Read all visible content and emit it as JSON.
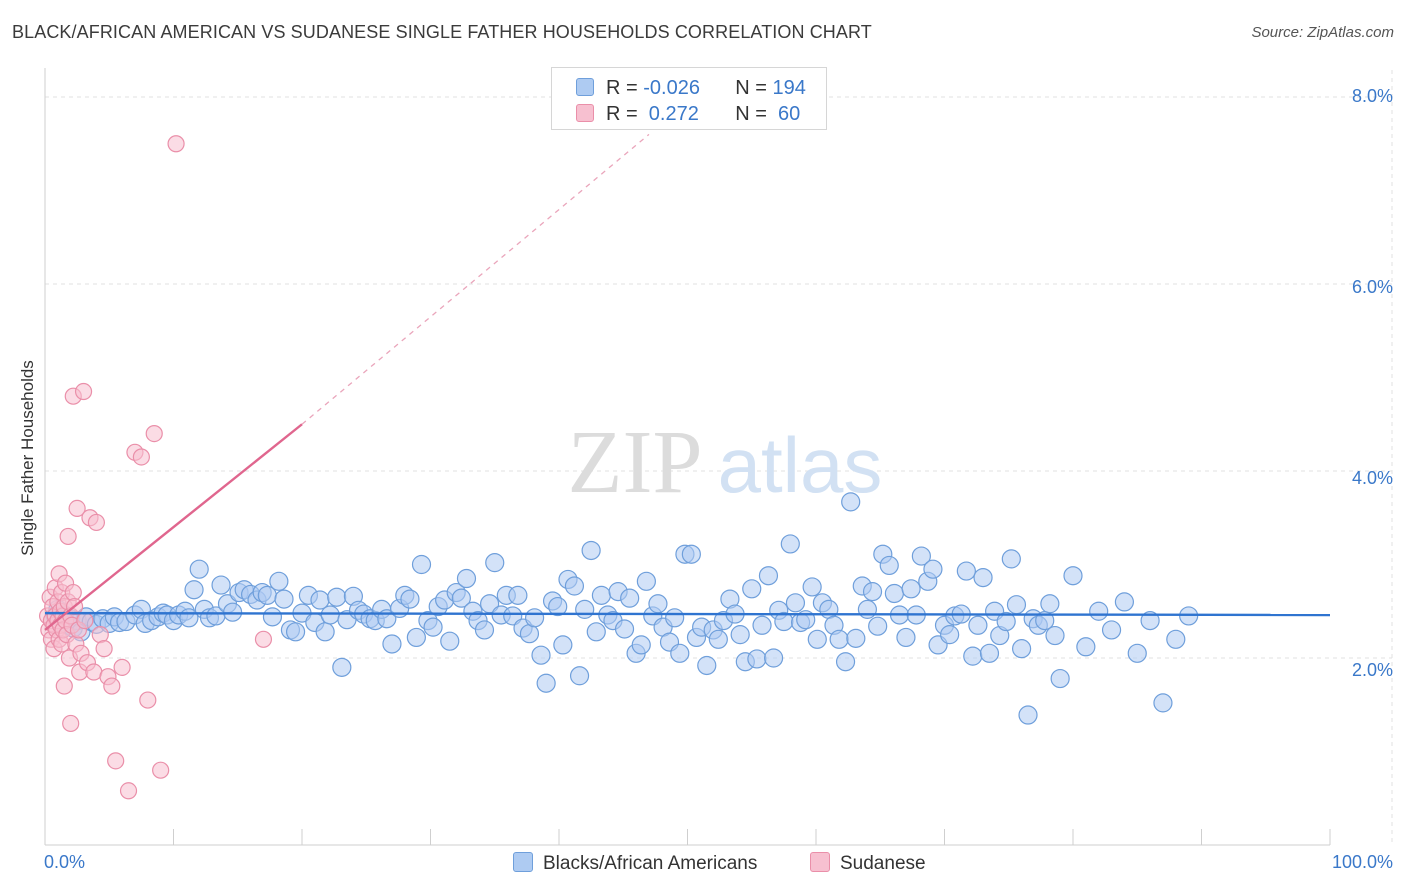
{
  "header": {
    "title": "BLACK/AFRICAN AMERICAN VS SUDANESE SINGLE FATHER HOUSEHOLDS CORRELATION CHART",
    "source": "Source: ZipAtlas.com"
  },
  "watermark": {
    "zip": "ZIP",
    "atlas": "atlas"
  },
  "legend_top": {
    "rows": [
      {
        "r_label": "R = ",
        "r_value": "-0.026",
        "n_label": "N = ",
        "n_value": "194"
      },
      {
        "r_label": "R = ",
        "r_value": " 0.272",
        "n_label": "N = ",
        "n_value": " 60"
      }
    ]
  },
  "legend_bottom": {
    "items": [
      {
        "label": "Blacks/African Americans"
      },
      {
        "label": "Sudanese"
      }
    ]
  },
  "colors": {
    "blue_fill": "#aecbf2",
    "blue_stroke": "#6f9fdb",
    "blue_line": "#2f74d0",
    "pink_fill": "#f7c0d0",
    "pink_stroke": "#ea8fa9",
    "pink_line": "#e0668e",
    "axis_text": "#3a78c9",
    "grid": "#e2e2e2"
  },
  "axes": {
    "ylabel": "Single Father Households",
    "x_tick_left": "0.0%",
    "x_tick_right": "100.0%",
    "y_ticks": [
      "2.0%",
      "4.0%",
      "6.0%",
      "8.0%"
    ]
  },
  "chart_data": {
    "type": "scatter",
    "xlim": [
      0,
      100
    ],
    "ylim": [
      0,
      8.0
    ],
    "grid": true,
    "legend_placement": "bottom",
    "series": [
      {
        "name": "Blacks/African Americans",
        "r": -0.026,
        "n": 194,
        "trend": {
          "x": [
            0,
            100
          ],
          "y": [
            2.48,
            2.46
          ]
        },
        "points": [
          [
            0.8,
            2.45
          ],
          [
            1.0,
            2.52
          ],
          [
            1.2,
            2.38
          ],
          [
            1.5,
            2.46
          ],
          [
            1.8,
            2.35
          ],
          [
            2.0,
            2.42
          ],
          [
            2.2,
            2.32
          ],
          [
            2.5,
            2.4
          ],
          [
            2.8,
            2.28
          ],
          [
            3.2,
            2.44
          ],
          [
            3.6,
            2.39
          ],
          [
            4.0,
            2.36
          ],
          [
            4.5,
            2.42
          ],
          [
            5.0,
            2.37
          ],
          [
            5.4,
            2.44
          ],
          [
            5.8,
            2.38
          ],
          [
            6.3,
            2.39
          ],
          [
            7.0,
            2.46
          ],
          [
            7.5,
            2.52
          ],
          [
            7.8,
            2.37
          ],
          [
            8.3,
            2.4
          ],
          [
            8.8,
            2.44
          ],
          [
            9.2,
            2.48
          ],
          [
            9.5,
            2.46
          ],
          [
            10.0,
            2.4
          ],
          [
            10.4,
            2.46
          ],
          [
            10.9,
            2.5
          ],
          [
            11.2,
            2.43
          ],
          [
            11.6,
            2.73
          ],
          [
            12.0,
            2.95
          ],
          [
            12.4,
            2.52
          ],
          [
            12.8,
            2.43
          ],
          [
            13.3,
            2.45
          ],
          [
            13.7,
            2.78
          ],
          [
            14.2,
            2.58
          ],
          [
            14.6,
            2.49
          ],
          [
            15.1,
            2.7
          ],
          [
            15.5,
            2.73
          ],
          [
            16.0,
            2.68
          ],
          [
            16.5,
            2.62
          ],
          [
            16.9,
            2.7
          ],
          [
            17.3,
            2.67
          ],
          [
            17.7,
            2.44
          ],
          [
            18.2,
            2.82
          ],
          [
            18.6,
            2.63
          ],
          [
            19.1,
            2.3
          ],
          [
            19.5,
            2.28
          ],
          [
            20.0,
            2.48
          ],
          [
            20.5,
            2.67
          ],
          [
            21.0,
            2.38
          ],
          [
            21.4,
            2.62
          ],
          [
            21.8,
            2.28
          ],
          [
            22.2,
            2.46
          ],
          [
            22.7,
            2.65
          ],
          [
            23.1,
            1.9
          ],
          [
            23.5,
            2.41
          ],
          [
            24.0,
            2.66
          ],
          [
            24.4,
            2.51
          ],
          [
            24.8,
            2.47
          ],
          [
            25.3,
            2.42
          ],
          [
            25.7,
            2.4
          ],
          [
            26.2,
            2.52
          ],
          [
            26.6,
            2.42
          ],
          [
            27.0,
            2.15
          ],
          [
            27.6,
            2.53
          ],
          [
            28.0,
            2.67
          ],
          [
            28.4,
            2.63
          ],
          [
            28.9,
            2.22
          ],
          [
            29.3,
            3.0
          ],
          [
            29.8,
            2.4
          ],
          [
            30.2,
            2.33
          ],
          [
            30.6,
            2.55
          ],
          [
            31.1,
            2.62
          ],
          [
            31.5,
            2.18
          ],
          [
            32.0,
            2.7
          ],
          [
            32.4,
            2.64
          ],
          [
            32.8,
            2.85
          ],
          [
            33.3,
            2.5
          ],
          [
            33.7,
            2.4
          ],
          [
            34.2,
            2.3
          ],
          [
            34.6,
            2.58
          ],
          [
            35.0,
            3.02
          ],
          [
            35.5,
            2.46
          ],
          [
            35.9,
            2.67
          ],
          [
            36.4,
            2.45
          ],
          [
            36.8,
            2.67
          ],
          [
            37.2,
            2.32
          ],
          [
            37.7,
            2.26
          ],
          [
            38.1,
            2.43
          ],
          [
            38.6,
            2.03
          ],
          [
            39.0,
            1.73
          ],
          [
            39.5,
            2.61
          ],
          [
            39.9,
            2.55
          ],
          [
            40.3,
            2.14
          ],
          [
            40.7,
            2.84
          ],
          [
            41.2,
            2.77
          ],
          [
            41.6,
            1.81
          ],
          [
            42.0,
            2.52
          ],
          [
            42.5,
            3.15
          ],
          [
            42.9,
            2.28
          ],
          [
            43.3,
            2.67
          ],
          [
            43.8,
            2.46
          ],
          [
            44.2,
            2.4
          ],
          [
            44.6,
            2.71
          ],
          [
            45.1,
            2.31
          ],
          [
            45.5,
            2.64
          ],
          [
            46.0,
            2.05
          ],
          [
            46.4,
            2.14
          ],
          [
            46.8,
            2.82
          ],
          [
            47.3,
            2.45
          ],
          [
            47.7,
            2.58
          ],
          [
            48.1,
            2.33
          ],
          [
            48.6,
            2.17
          ],
          [
            49.0,
            2.43
          ],
          [
            49.4,
            2.05
          ],
          [
            49.8,
            3.11
          ],
          [
            50.3,
            3.11
          ],
          [
            50.7,
            2.22
          ],
          [
            51.1,
            2.33
          ],
          [
            51.5,
            1.92
          ],
          [
            52.0,
            2.3
          ],
          [
            52.4,
            2.2
          ],
          [
            52.8,
            2.4
          ],
          [
            53.3,
            2.63
          ],
          [
            53.7,
            2.47
          ],
          [
            54.1,
            2.25
          ],
          [
            54.5,
            1.96
          ],
          [
            55.0,
            2.74
          ],
          [
            55.4,
            1.99
          ],
          [
            55.8,
            2.35
          ],
          [
            56.3,
            2.88
          ],
          [
            56.7,
            2.0
          ],
          [
            57.1,
            2.51
          ],
          [
            57.5,
            2.39
          ],
          [
            58.0,
            3.22
          ],
          [
            58.4,
            2.59
          ],
          [
            58.8,
            2.38
          ],
          [
            59.2,
            2.41
          ],
          [
            59.7,
            2.76
          ],
          [
            60.1,
            2.2
          ],
          [
            60.5,
            2.59
          ],
          [
            61.0,
            2.52
          ],
          [
            61.4,
            2.35
          ],
          [
            61.8,
            2.2
          ],
          [
            62.3,
            1.96
          ],
          [
            62.7,
            3.67
          ],
          [
            63.1,
            2.21
          ],
          [
            63.6,
            2.77
          ],
          [
            64.0,
            2.52
          ],
          [
            64.4,
            2.71
          ],
          [
            64.8,
            2.34
          ],
          [
            65.2,
            3.11
          ],
          [
            65.7,
            2.99
          ],
          [
            66.1,
            2.69
          ],
          [
            66.5,
            2.46
          ],
          [
            67.0,
            2.22
          ],
          [
            67.4,
            2.74
          ],
          [
            67.8,
            2.46
          ],
          [
            68.2,
            3.09
          ],
          [
            68.7,
            2.82
          ],
          [
            69.1,
            2.95
          ],
          [
            69.5,
            2.14
          ],
          [
            70.0,
            2.35
          ],
          [
            70.4,
            2.25
          ],
          [
            70.8,
            2.45
          ],
          [
            71.3,
            2.47
          ],
          [
            71.7,
            2.93
          ],
          [
            72.2,
            2.02
          ],
          [
            72.6,
            2.35
          ],
          [
            73.0,
            2.86
          ],
          [
            73.5,
            2.05
          ],
          [
            73.9,
            2.5
          ],
          [
            74.3,
            2.24
          ],
          [
            74.8,
            2.39
          ],
          [
            75.2,
            3.06
          ],
          [
            75.6,
            2.57
          ],
          [
            76.0,
            2.1
          ],
          [
            76.5,
            1.39
          ],
          [
            76.9,
            2.42
          ],
          [
            77.3,
            2.35
          ],
          [
            77.8,
            2.4
          ],
          [
            78.2,
            2.58
          ],
          [
            78.6,
            2.24
          ],
          [
            79.0,
            1.78
          ],
          [
            80.0,
            2.88
          ],
          [
            81.0,
            2.12
          ],
          [
            82.0,
            2.5
          ],
          [
            83.0,
            2.3
          ],
          [
            84.0,
            2.6
          ],
          [
            85.0,
            2.05
          ],
          [
            86.0,
            2.4
          ],
          [
            87.0,
            1.52
          ],
          [
            88.0,
            2.2
          ],
          [
            89.0,
            2.45
          ]
        ]
      },
      {
        "name": "Sudanese",
        "r": 0.272,
        "n": 60,
        "trend": {
          "x": [
            0,
            20
          ],
          "y": [
            2.3,
            4.5
          ]
        },
        "trend_extension": {
          "x": [
            20,
            47
          ],
          "y": [
            4.5,
            7.6
          ]
        },
        "points": [
          [
            0.2,
            2.45
          ],
          [
            0.3,
            2.3
          ],
          [
            0.4,
            2.65
          ],
          [
            0.5,
            2.4
          ],
          [
            0.5,
            2.2
          ],
          [
            0.6,
            2.55
          ],
          [
            0.7,
            2.35
          ],
          [
            0.7,
            2.1
          ],
          [
            0.8,
            2.75
          ],
          [
            0.8,
            2.45
          ],
          [
            0.9,
            2.3
          ],
          [
            1.0,
            2.6
          ],
          [
            1.0,
            2.4
          ],
          [
            1.1,
            2.2
          ],
          [
            1.1,
            2.9
          ],
          [
            1.2,
            2.5
          ],
          [
            1.2,
            2.35
          ],
          [
            1.3,
            2.7
          ],
          [
            1.3,
            2.15
          ],
          [
            1.4,
            2.45
          ],
          [
            1.4,
            2.3
          ],
          [
            1.5,
            2.55
          ],
          [
            1.5,
            1.7
          ],
          [
            1.6,
            2.8
          ],
          [
            1.6,
            2.4
          ],
          [
            1.7,
            2.25
          ],
          [
            1.8,
            3.3
          ],
          [
            1.8,
            2.6
          ],
          [
            1.9,
            2.0
          ],
          [
            2.0,
            2.45
          ],
          [
            2.0,
            1.3
          ],
          [
            2.1,
            2.35
          ],
          [
            2.2,
            4.8
          ],
          [
            2.2,
            2.7
          ],
          [
            2.3,
            2.55
          ],
          [
            2.4,
            2.15
          ],
          [
            2.5,
            3.6
          ],
          [
            2.6,
            2.3
          ],
          [
            2.7,
            1.85
          ],
          [
            2.8,
            2.05
          ],
          [
            3.0,
            4.85
          ],
          [
            3.1,
            2.4
          ],
          [
            3.3,
            1.95
          ],
          [
            3.5,
            3.5
          ],
          [
            3.8,
            1.85
          ],
          [
            4.0,
            3.45
          ],
          [
            4.3,
            2.25
          ],
          [
            4.6,
            2.1
          ],
          [
            4.9,
            1.8
          ],
          [
            5.2,
            1.7
          ],
          [
            5.5,
            0.9
          ],
          [
            6.0,
            1.9
          ],
          [
            6.5,
            0.58
          ],
          [
            7.0,
            4.2
          ],
          [
            7.5,
            4.15
          ],
          [
            8.0,
            1.55
          ],
          [
            8.5,
            4.4
          ],
          [
            9.0,
            0.8
          ],
          [
            10.2,
            7.5
          ],
          [
            17.0,
            2.2
          ]
        ]
      }
    ]
  }
}
